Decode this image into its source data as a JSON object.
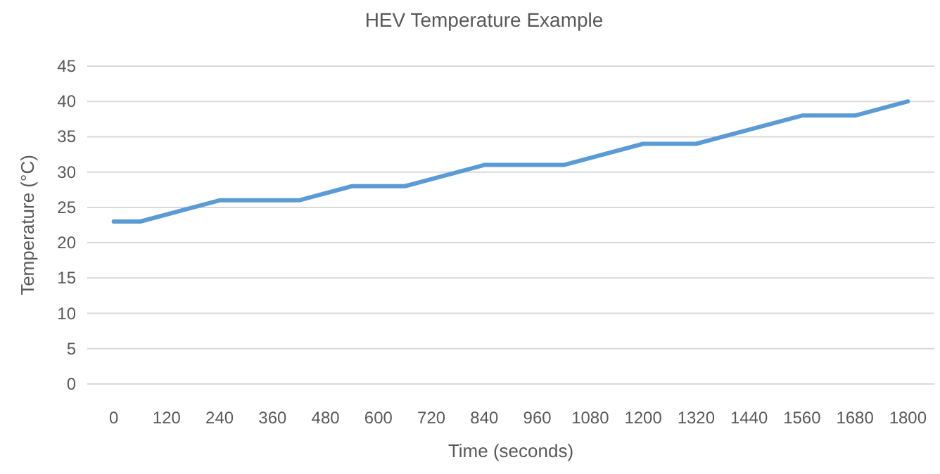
{
  "chart_data": {
    "type": "line",
    "title": "HEV Temperature Example",
    "xlabel": "Time (seconds)",
    "ylabel": "Temperature (°C)",
    "x": [
      0,
      60,
      240,
      420,
      540,
      660,
      840,
      1020,
      1200,
      1320,
      1560,
      1680,
      1800
    ],
    "series": [
      {
        "color": "#5b9bd5",
        "values": [
          23,
          23,
          26,
          26,
          28,
          28,
          31,
          31,
          34,
          34,
          38,
          38,
          40
        ]
      }
    ],
    "xlim": [
      -60,
      1860
    ],
    "xticks": [
      0,
      120,
      240,
      360,
      480,
      600,
      720,
      840,
      960,
      1080,
      1200,
      1320,
      1440,
      1560,
      1680,
      1800
    ],
    "ylim": [
      0,
      45
    ],
    "yticks": [
      0,
      5,
      10,
      15,
      20,
      25,
      30,
      35,
      40,
      45
    ],
    "grid": "y",
    "marker": "none",
    "line_style": "solid"
  }
}
